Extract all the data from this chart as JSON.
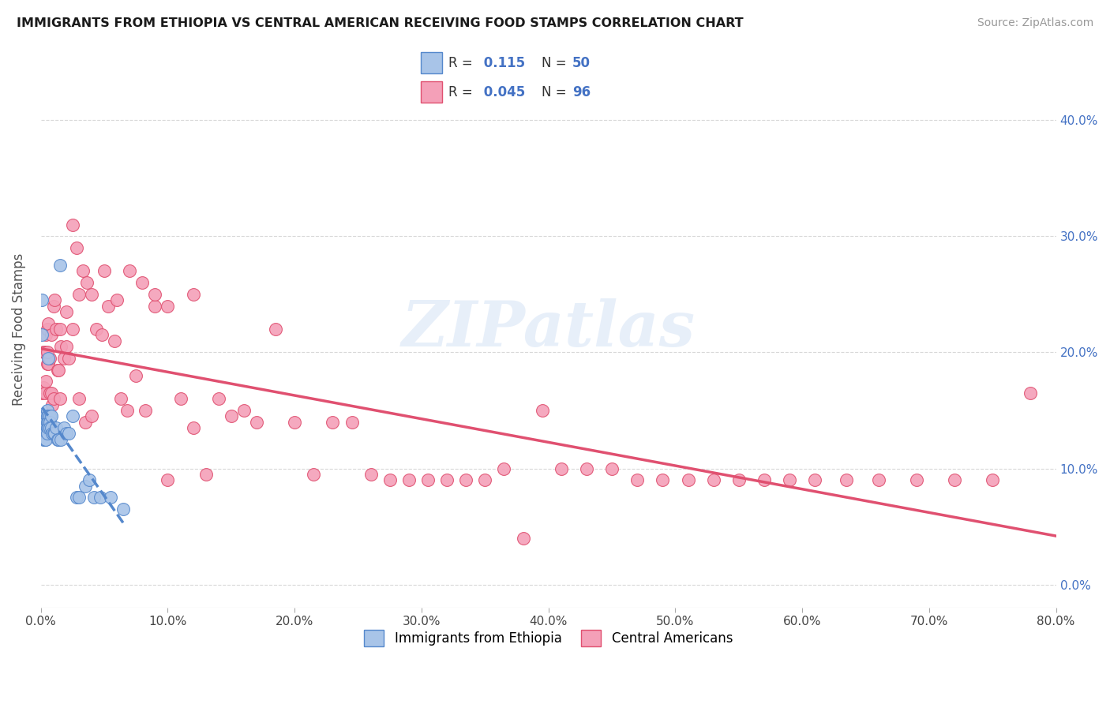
{
  "title": "IMMIGRANTS FROM ETHIOPIA VS CENTRAL AMERICAN RECEIVING FOOD STAMPS CORRELATION CHART",
  "source": "Source: ZipAtlas.com",
  "ylabel": "Receiving Food Stamps",
  "xlim": [
    0.0,
    0.8
  ],
  "ylim": [
    -0.02,
    0.46
  ],
  "y_ticks": [
    0.0,
    0.1,
    0.2,
    0.3,
    0.4
  ],
  "x_ticks": [
    0.0,
    0.1,
    0.2,
    0.3,
    0.4,
    0.5,
    0.6,
    0.7,
    0.8
  ],
  "ethiopia_color": "#a8c4e8",
  "ethiopia_edge": "#5588cc",
  "central_color": "#f4a0b8",
  "central_edge": "#e05070",
  "ethiopia_R": 0.115,
  "ethiopia_N": 50,
  "central_R": 0.045,
  "central_N": 96,
  "legend_label1": "Immigrants from Ethiopia",
  "legend_label2": "Central Americans",
  "watermark": "ZIPatlas",
  "ethiopia_x": [
    0.001,
    0.001,
    0.002,
    0.002,
    0.002,
    0.002,
    0.003,
    0.003,
    0.003,
    0.003,
    0.003,
    0.004,
    0.004,
    0.004,
    0.004,
    0.004,
    0.005,
    0.005,
    0.005,
    0.005,
    0.005,
    0.006,
    0.006,
    0.006,
    0.006,
    0.007,
    0.007,
    0.007,
    0.008,
    0.008,
    0.009,
    0.01,
    0.011,
    0.012,
    0.013,
    0.014,
    0.015,
    0.016,
    0.018,
    0.02,
    0.022,
    0.025,
    0.028,
    0.03,
    0.035,
    0.038,
    0.042,
    0.047,
    0.055,
    0.065
  ],
  "ethiopia_y": [
    0.245,
    0.215,
    0.14,
    0.135,
    0.13,
    0.125,
    0.145,
    0.14,
    0.135,
    0.13,
    0.125,
    0.145,
    0.14,
    0.135,
    0.13,
    0.125,
    0.15,
    0.145,
    0.14,
    0.135,
    0.13,
    0.195,
    0.145,
    0.14,
    0.135,
    0.145,
    0.14,
    0.135,
    0.145,
    0.135,
    0.13,
    0.13,
    0.13,
    0.135,
    0.125,
    0.125,
    0.275,
    0.125,
    0.135,
    0.13,
    0.13,
    0.145,
    0.075,
    0.075,
    0.085,
    0.09,
    0.075,
    0.075,
    0.075,
    0.065
  ],
  "central_x": [
    0.001,
    0.002,
    0.002,
    0.003,
    0.003,
    0.004,
    0.004,
    0.005,
    0.005,
    0.006,
    0.006,
    0.007,
    0.007,
    0.008,
    0.008,
    0.009,
    0.01,
    0.011,
    0.012,
    0.013,
    0.014,
    0.015,
    0.016,
    0.018,
    0.02,
    0.022,
    0.025,
    0.028,
    0.03,
    0.033,
    0.036,
    0.04,
    0.044,
    0.048,
    0.053,
    0.058,
    0.063,
    0.068,
    0.075,
    0.082,
    0.09,
    0.1,
    0.11,
    0.12,
    0.13,
    0.14,
    0.15,
    0.16,
    0.17,
    0.185,
    0.2,
    0.215,
    0.23,
    0.245,
    0.26,
    0.275,
    0.29,
    0.305,
    0.32,
    0.335,
    0.35,
    0.365,
    0.38,
    0.395,
    0.41,
    0.43,
    0.45,
    0.47,
    0.49,
    0.51,
    0.53,
    0.55,
    0.57,
    0.59,
    0.61,
    0.635,
    0.66,
    0.69,
    0.72,
    0.75,
    0.005,
    0.01,
    0.015,
    0.02,
    0.025,
    0.03,
    0.035,
    0.04,
    0.05,
    0.06,
    0.07,
    0.08,
    0.09,
    0.1,
    0.12,
    0.78
  ],
  "central_y": [
    0.165,
    0.17,
    0.2,
    0.165,
    0.2,
    0.175,
    0.215,
    0.19,
    0.22,
    0.19,
    0.225,
    0.165,
    0.195,
    0.165,
    0.215,
    0.155,
    0.24,
    0.245,
    0.22,
    0.185,
    0.185,
    0.22,
    0.205,
    0.195,
    0.205,
    0.195,
    0.31,
    0.29,
    0.25,
    0.27,
    0.26,
    0.25,
    0.22,
    0.215,
    0.24,
    0.21,
    0.16,
    0.15,
    0.18,
    0.15,
    0.24,
    0.09,
    0.16,
    0.135,
    0.095,
    0.16,
    0.145,
    0.15,
    0.14,
    0.22,
    0.14,
    0.095,
    0.14,
    0.14,
    0.095,
    0.09,
    0.09,
    0.09,
    0.09,
    0.09,
    0.09,
    0.1,
    0.04,
    0.15,
    0.1,
    0.1,
    0.1,
    0.09,
    0.09,
    0.09,
    0.09,
    0.09,
    0.09,
    0.09,
    0.09,
    0.09,
    0.09,
    0.09,
    0.09,
    0.09,
    0.2,
    0.16,
    0.16,
    0.235,
    0.22,
    0.16,
    0.14,
    0.145,
    0.27,
    0.245,
    0.27,
    0.26,
    0.25,
    0.24,
    0.25,
    0.165
  ]
}
